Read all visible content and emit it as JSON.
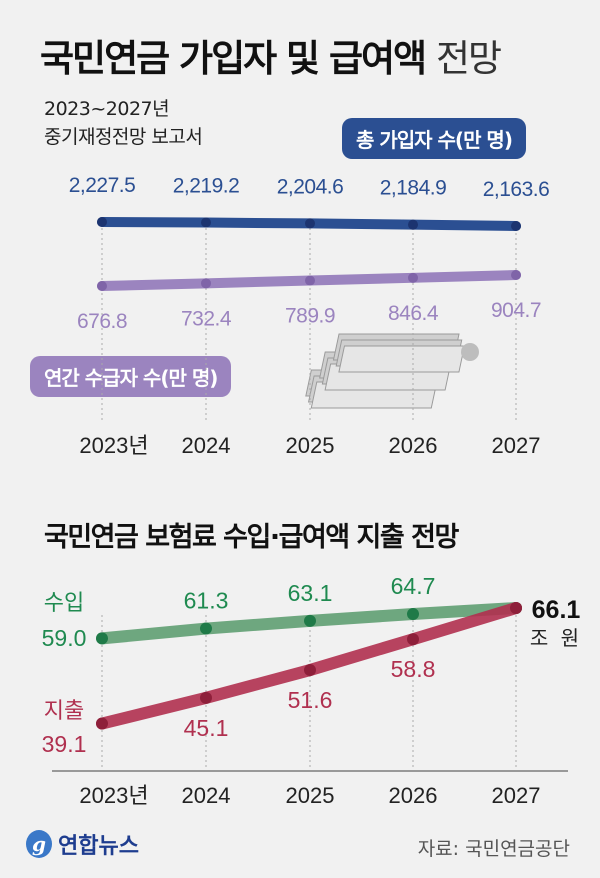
{
  "title": {
    "bold": "국민연금 가입자 및 급여액",
    "light": "전망"
  },
  "subtitle": [
    "2023~2027년",
    "중기재정전망 보고서"
  ],
  "colors": {
    "subscribers": "#2b4f92",
    "recipients": "#9b84bf",
    "income": "#5f9e72",
    "income_text": "#1f8a50",
    "expense": "#b0304f",
    "expense_text": "#b0304f"
  },
  "chart_data": [
    {
      "type": "line",
      "categories": [
        "2023년",
        "2024",
        "2025",
        "2026",
        "2027"
      ],
      "series": [
        {
          "name": "총 가입자 수(만 명)",
          "values": [
            2227.5,
            2219.2,
            2204.6,
            2184.9,
            2163.6
          ],
          "labels": [
            "2,227.5",
            "2,219.2",
            "2,204.6",
            "2,184.9",
            "2,163.6"
          ]
        },
        {
          "name": "연간 수급자 수(만 명)",
          "values": [
            676.8,
            732.4,
            789.9,
            846.4,
            904.7
          ],
          "labels": [
            "676.8",
            "732.4",
            "789.9",
            "846.4",
            "904.7"
          ]
        }
      ]
    },
    {
      "type": "line",
      "title": "국민연금 보험료 수입·급여액 지출 전망",
      "categories": [
        "2023년",
        "2024",
        "2025",
        "2026",
        "2027"
      ],
      "unit": "조 원",
      "series": [
        {
          "name": "수입",
          "values": [
            59.0,
            61.3,
            63.1,
            64.7,
            66.1
          ],
          "labels": [
            "59.0",
            "61.3",
            "63.1",
            "64.7",
            "66.1"
          ]
        },
        {
          "name": "지출",
          "values": [
            39.1,
            45.1,
            51.6,
            58.8,
            66.1
          ],
          "labels": [
            "39.1",
            "45.1",
            "51.6",
            "58.8",
            "66.1"
          ]
        }
      ]
    }
  ],
  "source": "자료: 국민연금공단",
  "logo": "연합뉴스",
  "icons": [
    "money-stack-icon",
    "yonhap-logo-icon"
  ]
}
